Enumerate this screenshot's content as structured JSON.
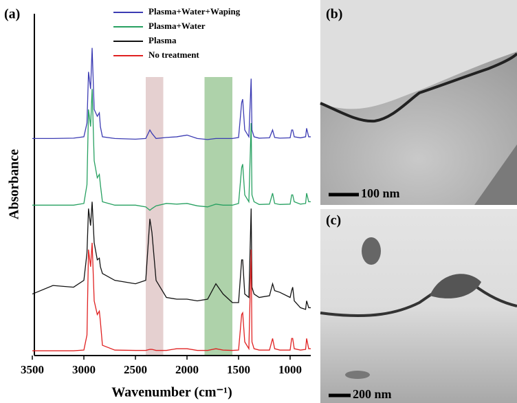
{
  "chart_data": {
    "type": "line",
    "label": "(a)",
    "x_label": "Wavenumber  (cm⁻¹)",
    "y_label": "Absorbance",
    "x": [
      3500,
      3300,
      3100,
      3000,
      2970,
      2955,
      2935,
      2920,
      2900,
      2870,
      2850,
      2840,
      2820,
      2700,
      2500,
      2400,
      2360,
      2340,
      2300,
      2200,
      2100,
      2000,
      1900,
      1800,
      1720,
      1650,
      1560,
      1500,
      1470,
      1460,
      1440,
      1400,
      1378,
      1370,
      1350,
      1300,
      1200,
      1170,
      1150,
      1100,
      1000,
      985,
      975,
      960,
      900,
      850,
      840,
      820,
      800
    ],
    "xlim": [
      3500,
      800
    ],
    "xticks": [
      3500,
      3000,
      2500,
      2000,
      1500,
      1000
    ],
    "ylim": [
      0,
      100
    ],
    "highlights": [
      {
        "from": 2400,
        "to": 2230,
        "color": "#dcc0c0"
      },
      {
        "from": 1830,
        "to": 1560,
        "color": "#93c38e"
      }
    ],
    "series": [
      {
        "name": "Plasma+Water+Waping",
        "color": "#3b3bb3",
        "values": [
          63.5,
          63.5,
          63.6,
          64,
          68,
          83,
          78,
          90,
          72,
          70,
          71,
          67,
          64,
          63.5,
          63.3,
          63.5,
          66,
          65,
          63.5,
          63.8,
          64,
          64.5,
          63.5,
          63.2,
          63.5,
          63.5,
          63.5,
          63.8,
          74,
          75,
          66,
          64,
          81,
          66,
          64,
          63.6,
          63.7,
          66,
          63.8,
          63.6,
          63.7,
          66,
          66,
          64,
          63.7,
          64,
          66.5,
          64,
          64
        ]
      },
      {
        "name": "Plasma+Water",
        "color": "#26a060",
        "values": [
          44,
          44,
          44,
          44.5,
          50,
          72,
          67,
          78,
          57,
          52,
          53,
          50,
          45,
          44,
          44,
          43.5,
          42.5,
          43,
          43.8,
          44.5,
          44.3,
          44.5,
          43.8,
          43.5,
          44.3,
          44,
          44,
          44.5,
          55,
          56,
          47,
          45,
          68,
          47,
          45,
          44.2,
          44.3,
          47.5,
          44.5,
          44.2,
          44.3,
          47,
          47,
          45,
          44.3,
          44.5,
          47.5,
          45,
          45
        ]
      },
      {
        "name": "Plasma",
        "color": "#111111",
        "values": [
          18,
          20.5,
          20,
          22,
          30,
          43,
          38,
          45,
          33,
          28,
          28.5,
          26,
          24,
          22,
          21,
          22,
          40,
          36,
          22,
          17,
          16.5,
          16.5,
          16,
          16.5,
          21,
          18,
          15.5,
          15.5,
          28,
          28,
          18,
          17,
          43,
          20,
          18,
          17,
          17.5,
          21,
          19,
          18.5,
          17,
          19,
          20,
          16,
          14,
          13.5,
          16,
          14,
          14
        ]
      },
      {
        "name": "No treatment",
        "color": "#e02020",
        "values": [
          1.4,
          1.4,
          1.4,
          1.6,
          6,
          31,
          26,
          33,
          16,
          12,
          13,
          10,
          3,
          1.6,
          1.5,
          1.5,
          1.8,
          1.8,
          1.5,
          1.5,
          2,
          2,
          1.5,
          1.5,
          2,
          1.6,
          1.5,
          1.6,
          12,
          12.5,
          4,
          2,
          31,
          4,
          2,
          1.6,
          1.6,
          5,
          2,
          1.6,
          1.6,
          5,
          5,
          2,
          1.6,
          1.8,
          5,
          2,
          2
        ]
      }
    ]
  },
  "images": [
    {
      "label": "(b)",
      "scale_bar": "100 nm"
    },
    {
      "label": "(c)",
      "scale_bar": "200 nm"
    }
  ]
}
